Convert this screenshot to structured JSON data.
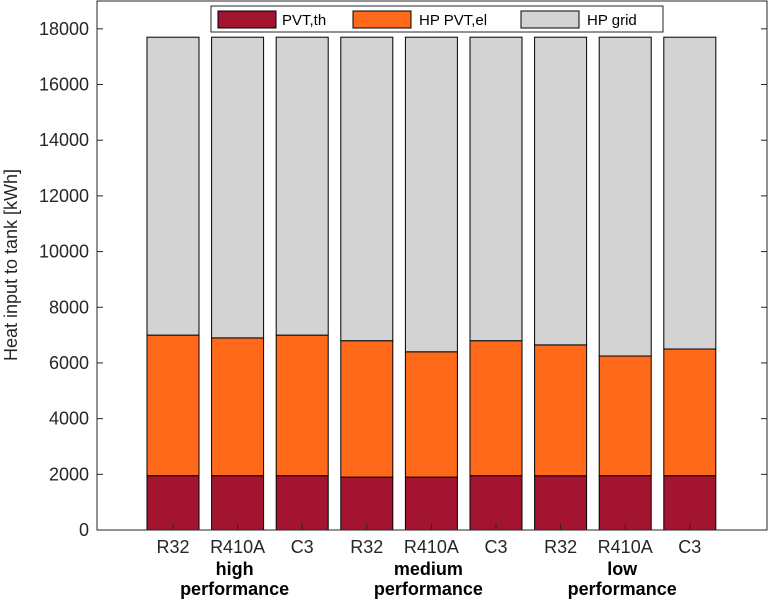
{
  "chart_data": {
    "type": "bar",
    "stacked": true,
    "ylabel": "Heat input to tank [kWh]",
    "xlabel": "",
    "ylim": [
      0,
      19000
    ],
    "yticks": [
      0,
      2000,
      4000,
      6000,
      8000,
      10000,
      12000,
      14000,
      16000,
      18000
    ],
    "grid": false,
    "legend_position": "top",
    "categories": [
      "R32",
      "R410A",
      "C3",
      "R32",
      "R410A",
      "C3",
      "R32",
      "R410A",
      "C3"
    ],
    "groups": [
      {
        "label_line1": "high",
        "label_line2": "performance"
      },
      {
        "label_line1": "medium",
        "label_line2": "performance"
      },
      {
        "label_line1": "low",
        "label_line2": "performance"
      }
    ],
    "series": [
      {
        "name": "PVT,th",
        "color": "#A2142F",
        "values": [
          1950,
          1950,
          1950,
          1900,
          1900,
          1950,
          1950,
          1950,
          1950
        ]
      },
      {
        "name": "HP PVT,el",
        "color": "#FF6A1A",
        "values": [
          5050,
          4950,
          5050,
          4900,
          4500,
          4850,
          4700,
          4300,
          4550
        ]
      },
      {
        "name": "HP grid",
        "color": "#D3D3D3",
        "values": [
          10700,
          10800,
          10700,
          10900,
          11300,
          10900,
          11050,
          11450,
          11200
        ]
      }
    ]
  }
}
